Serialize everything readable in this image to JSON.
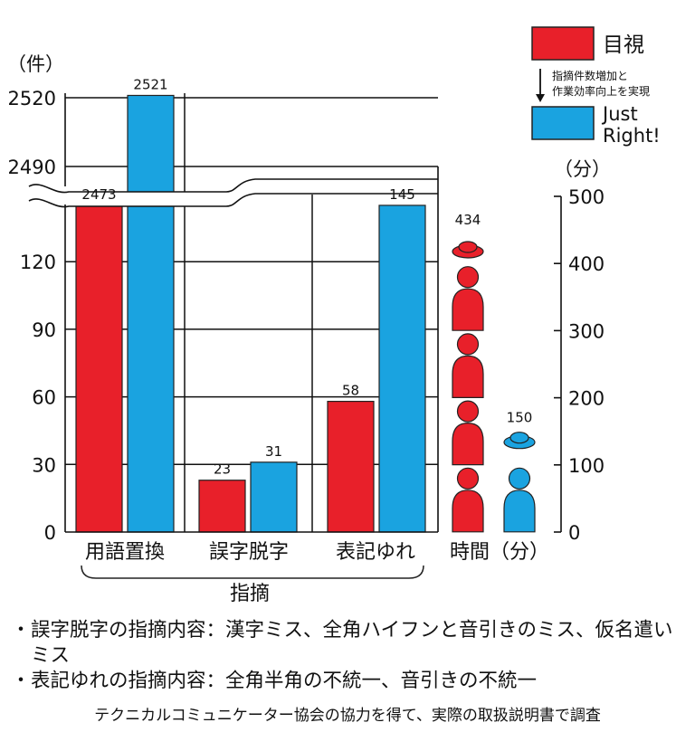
{
  "chart_data": {
    "type": "bar",
    "left_axis": {
      "unit_label": "（件）",
      "ticks": [
        "0",
        "30",
        "60",
        "90",
        "120",
        "2490",
        "2520"
      ],
      "broken": true
    },
    "right_axis": {
      "unit_label": "（分）",
      "ticks": [
        "0",
        "100",
        "200",
        "300",
        "400",
        "500"
      ]
    },
    "legend": [
      {
        "name": "目視",
        "color": "#e8202a"
      },
      {
        "name": "Just Right!",
        "color": "#1aa3e0"
      }
    ],
    "legend_note": "指摘件数増加と作業効率向上を実現",
    "categories": [
      "用語置換",
      "誤字脱字",
      "表記ゆれ"
    ],
    "category_group_label": "指摘",
    "series": [
      {
        "name": "目視",
        "values": [
          2473,
          23,
          58
        ],
        "labels": [
          "2473",
          "23",
          "58"
        ]
      },
      {
        "name": "Just Right!",
        "values": [
          2521,
          31,
          145
        ],
        "labels": [
          "2521",
          "31",
          "145"
        ]
      }
    ],
    "time": {
      "label": "時間（分）",
      "values": [
        434,
        150
      ],
      "labels": [
        "434",
        "150"
      ]
    }
  },
  "notes": [
    "誤字脱字の指摘内容：漢字ミス、全角ハイフンと音引きのミス、仮名遣いミス",
    "表記ゆれの指摘内容：全角半角の不統一、音引きの不統一"
  ],
  "note_bullet": "・",
  "source": "テクニカルコミュニケーター協会の協力を得て、実際の取扱説明書で調査"
}
